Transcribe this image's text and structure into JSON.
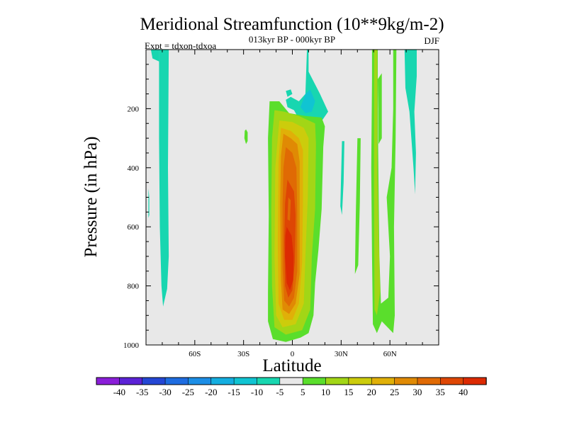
{
  "chart_data": {
    "type": "contour",
    "title": "Meridional Streamfunction (10**9kg/m-2)",
    "subtitle": "013kyr BP - 000kyr BP",
    "left_label": "Expt = tdxon-tdxoa",
    "right_label": "DJF",
    "xlabel": "Latitude",
    "ylabel": "Pressure (in hPa)",
    "xlim": [
      -90,
      90
    ],
    "ylim": [
      1000,
      0
    ],
    "x_ticks": [
      {
        "value": -60,
        "label": "60S"
      },
      {
        "value": -30,
        "label": "30S"
      },
      {
        "value": 0,
        "label": "0"
      },
      {
        "value": 30,
        "label": "30N"
      },
      {
        "value": 60,
        "label": "60N"
      }
    ],
    "y_ticks": [
      {
        "value": 200,
        "label": "200"
      },
      {
        "value": 400,
        "label": "400"
      },
      {
        "value": 600,
        "label": "600"
      },
      {
        "value": 800,
        "label": "800"
      },
      {
        "value": 1000,
        "label": "1000"
      }
    ],
    "levels": [
      -40,
      -35,
      -30,
      -25,
      -20,
      -15,
      -10,
      -5,
      5,
      10,
      15,
      20,
      25,
      30,
      35,
      40
    ],
    "level_labels": [
      "-40",
      "-35",
      "-30",
      "-25",
      "-20",
      "-15",
      "-10",
      "-5",
      "5",
      "10",
      "15",
      "20",
      "25",
      "30",
      "35",
      "40"
    ],
    "colors": [
      "#8a1ed8",
      "#5b22d6",
      "#2446d4",
      "#1e6ce0",
      "#1c8ee6",
      "#14aee0",
      "#10c4d2",
      "#18d6b0",
      "#e8e8e8",
      "#5ade2c",
      "#a2d616",
      "#cccc0c",
      "#e0b008",
      "#e08a04",
      "#e06a04",
      "#de4604",
      "#dc2a02"
    ],
    "background_color": "#e8e8e8",
    "features": [
      {
        "name": "tropical positive cell",
        "lat_center": -1,
        "pressure_range": [
          180,
          985
        ],
        "peak_value": 40,
        "peak_lat": -1,
        "peak_pressure": 780
      },
      {
        "name": "upper tropical negative cell",
        "lat_center": 5,
        "pressure_range": [
          0,
          290
        ],
        "peak_value": -15
      },
      {
        "name": "southern subpolar negative band",
        "lat_range": [
          -82,
          -74
        ],
        "pressure_range": [
          0,
          870
        ],
        "peak_value": -10
      },
      {
        "name": "northern midlatitude positive band",
        "lat_range": [
          48,
          65
        ],
        "pressure_range": [
          0,
          960
        ],
        "peak_value": 10
      },
      {
        "name": "northern high-latitude negative band",
        "lat_range": [
          69,
          77
        ],
        "pressure_range": [
          0,
          490
        ],
        "peak_value": -10
      }
    ]
  }
}
